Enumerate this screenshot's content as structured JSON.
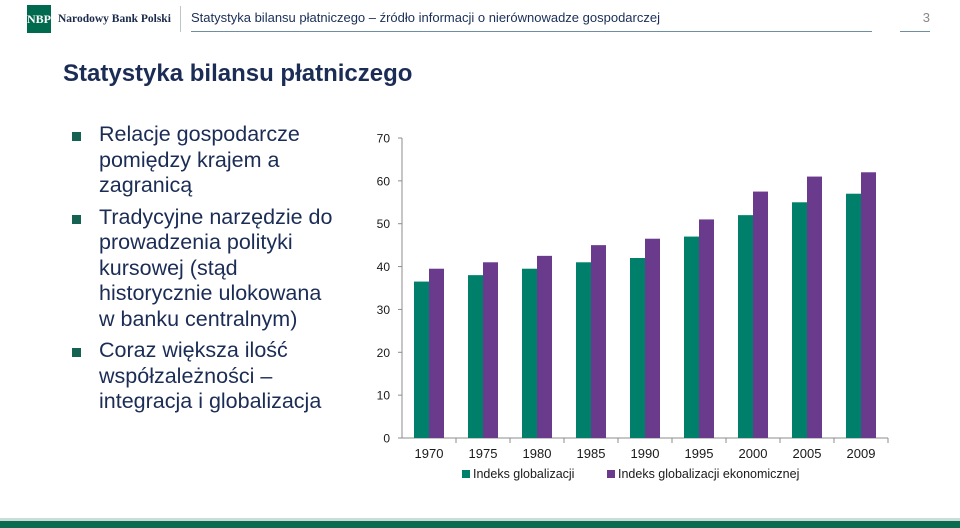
{
  "header": {
    "logo_mark": "NBP",
    "logo_text": "Narodowy Bank Polski",
    "subtitle": "Statystyka bilansu płatniczego – źródło informacji o nierównowadze gospodarczej",
    "page_number": "3"
  },
  "slide": {
    "title": "Statystyka bilansu płatniczego",
    "bullets": [
      "Relacje gospodarcze pomiędzy krajem a zagranicą",
      "Tradycyjne narzędzie do prowadzenia polityki kursowej (stąd historycznie ulokowana w banku centralnym)",
      "Coraz większa ilość współzależności – integracja i globalizacja"
    ]
  },
  "colors": {
    "brand_green": "#006a4e",
    "text_navy": "#1b2c55",
    "series_1": "#00806b",
    "series_2": "#6a3a8c"
  },
  "chart_data": {
    "type": "bar",
    "categories": [
      "1970",
      "1975",
      "1980",
      "1985",
      "1990",
      "1995",
      "2000",
      "2005",
      "2009"
    ],
    "series": [
      {
        "name": "Indeks globalizacji",
        "values": [
          36.5,
          38,
          39.5,
          41,
          42,
          47,
          52,
          55,
          57
        ]
      },
      {
        "name": "Indeks globalizacji ekonomicznej",
        "values": [
          39.5,
          41,
          42.5,
          45,
          46.5,
          51,
          57.5,
          61,
          62
        ]
      }
    ],
    "ylim": [
      0,
      70
    ],
    "yticks": [
      "0",
      "10",
      "20",
      "30",
      "40",
      "50",
      "60",
      "70"
    ],
    "grid": false,
    "legend": "bottom"
  }
}
